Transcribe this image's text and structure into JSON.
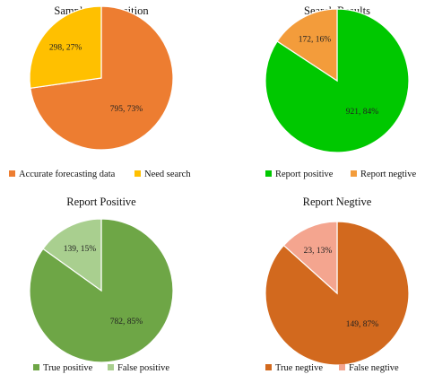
{
  "chart_data": [
    {
      "type": "pie",
      "title": "Sample Composition",
      "slices": [
        {
          "name": "Accurate forecasting data",
          "value": 795,
          "percent": 73,
          "label": "795, 73%",
          "color": "#ED7D31"
        },
        {
          "name": "Need search",
          "value": 298,
          "percent": 27,
          "label": "298, 27%",
          "color": "#FFC000"
        }
      ],
      "legend": {
        "position": "bottom",
        "entries": [
          "Accurate forecasting data",
          "Need search"
        ]
      }
    },
    {
      "type": "pie",
      "title": "Search Results",
      "slices": [
        {
          "name": "Report positive",
          "value": 921,
          "percent": 84,
          "label": "921, 84%",
          "color": "#00C800"
        },
        {
          "name": "Report negtive",
          "value": 172,
          "percent": 16,
          "label": "172, 16%",
          "color": "#F39C3B"
        }
      ],
      "legend": {
        "position": "bottom",
        "entries": [
          "Report positive",
          "Report negtive"
        ]
      }
    },
    {
      "type": "pie",
      "title": "Report Positive",
      "slices": [
        {
          "name": "True positive",
          "value": 782,
          "percent": 85,
          "label": "782, 85%",
          "color": "#6EA646"
        },
        {
          "name": "False positive",
          "value": 139,
          "percent": 15,
          "label": "139, 15%",
          "color": "#A9CF8F"
        }
      ],
      "legend": {
        "position": "bottom",
        "entries": [
          "True positive",
          "False positive"
        ]
      }
    },
    {
      "type": "pie",
      "title": "Report Negtive",
      "slices": [
        {
          "name": "True negtive",
          "value": 149,
          "percent": 87,
          "label": "149, 87%",
          "color": "#D2691E"
        },
        {
          "name": "False negtive",
          "value": 23,
          "percent": 13,
          "label": "23, 13%",
          "color": "#F4A58F"
        }
      ],
      "legend": {
        "position": "bottom",
        "entries": [
          "True negtive",
          "False negtive"
        ]
      }
    }
  ]
}
